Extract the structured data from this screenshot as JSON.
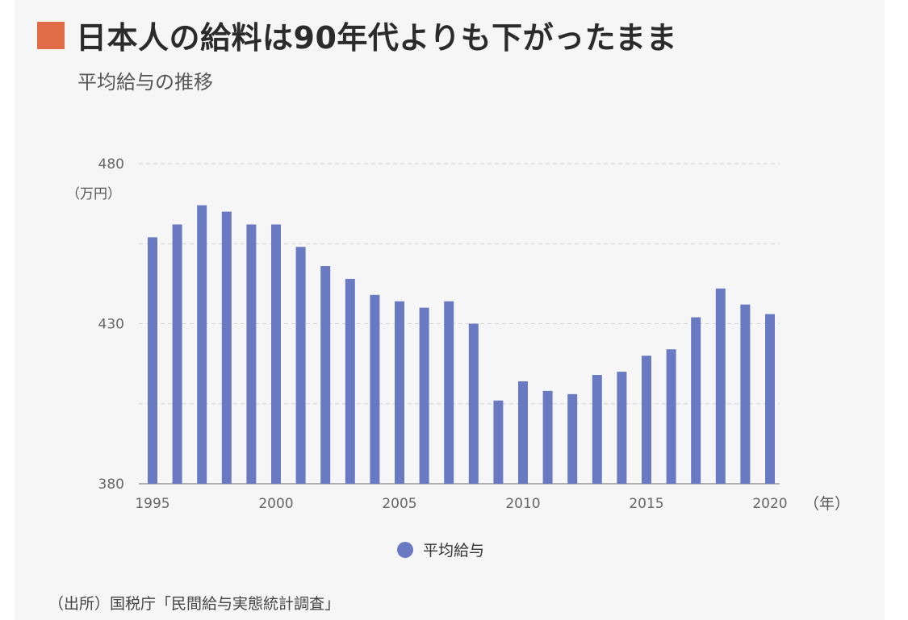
{
  "header": {
    "title": "日本人の給料は90年代よりも下がったまま",
    "subtitle": "平均給与の推移",
    "accent_color": "#e06d47"
  },
  "chart_data": {
    "type": "bar",
    "title": "日本人の給料は90年代よりも下がったまま",
    "subtitle": "平均給与の推移",
    "y_unit": "（万円）",
    "x_unit": "（年）",
    "ylim": [
      380,
      480
    ],
    "y_ticks": [
      "480",
      "430",
      "380"
    ],
    "y_gridlines": [
      405,
      430,
      455,
      480
    ],
    "x_ticks": [
      "1995",
      "2000",
      "2005",
      "2010",
      "2015",
      "2020"
    ],
    "grid": true,
    "legend_position": "bottom-center",
    "bar_color": "#6a7ac2",
    "categories": [
      "1995",
      "1996",
      "1997",
      "1998",
      "1999",
      "2000",
      "2001",
      "2002",
      "2003",
      "2004",
      "2005",
      "2006",
      "2007",
      "2008",
      "2009",
      "2010",
      "2011",
      "2012",
      "2013",
      "2014",
      "2015",
      "2016",
      "2017",
      "2018",
      "2019",
      "2020"
    ],
    "series": [
      {
        "name": "平均給与",
        "values": [
          457,
          461,
          467,
          465,
          461,
          461,
          454,
          448,
          444,
          439,
          437,
          435,
          437,
          430,
          406,
          412,
          409,
          408,
          414,
          415,
          420,
          422,
          432,
          441,
          436,
          433
        ]
      }
    ]
  },
  "footer": {
    "source": "（出所）国税庁「民間給与実態統計調査」"
  }
}
